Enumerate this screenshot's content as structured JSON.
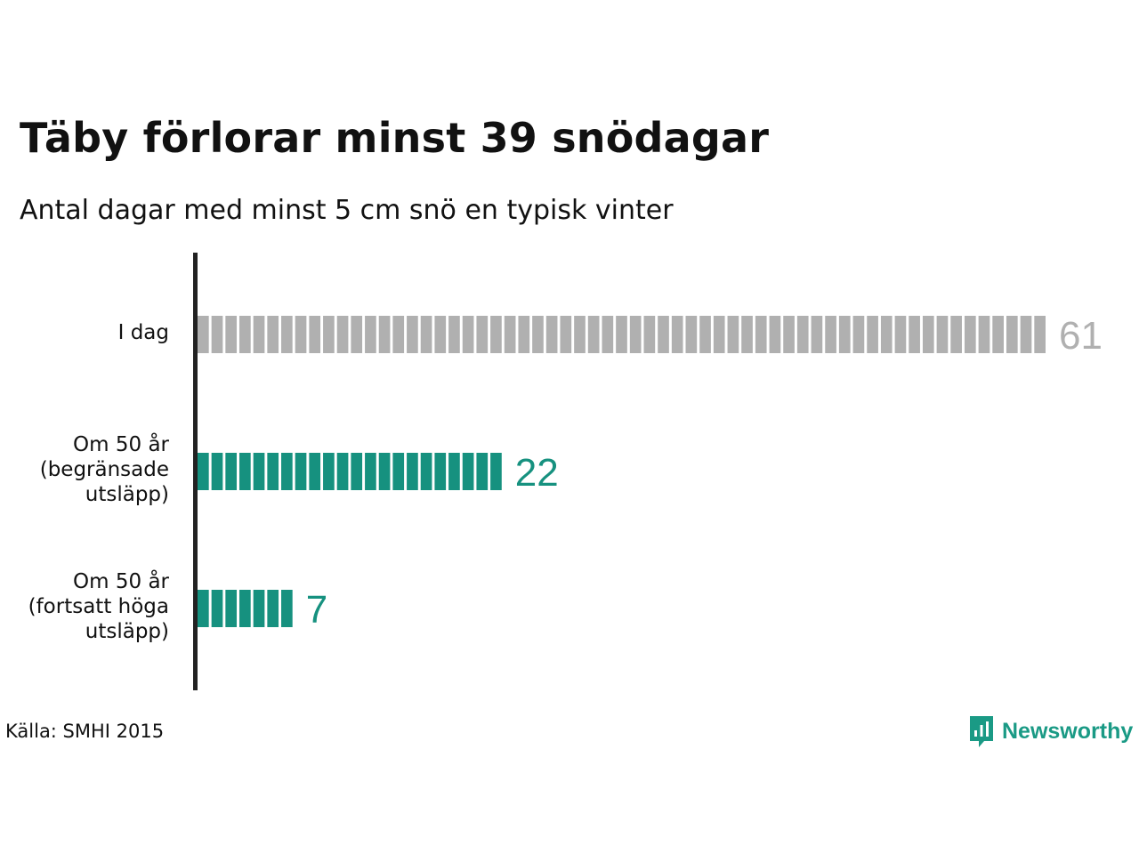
{
  "chart_data": {
    "type": "bar",
    "orientation": "horizontal",
    "title": "Täby förlorar minst 39 snödagar",
    "subtitle": "Antal dagar med minst 5 cm snö en typisk vinter",
    "categories": [
      [
        "I dag"
      ],
      [
        "Om 50 år",
        "(begränsade",
        "utsläpp)"
      ],
      [
        "Om 50 år",
        "(fortsatt höga",
        "utsläpp)"
      ]
    ],
    "values": [
      61,
      22,
      7
    ],
    "value_labels": [
      "61",
      "22",
      "7"
    ],
    "colors": [
      "#b0b0b0",
      "#16917f",
      "#16917f"
    ],
    "xlim": [
      0,
      61
    ],
    "grid": false
  },
  "source": "Källa: SMHI 2015",
  "brand": {
    "name": "Newsworthy",
    "icon": "newsworthy-logo-icon",
    "color": "#1a9a85"
  }
}
